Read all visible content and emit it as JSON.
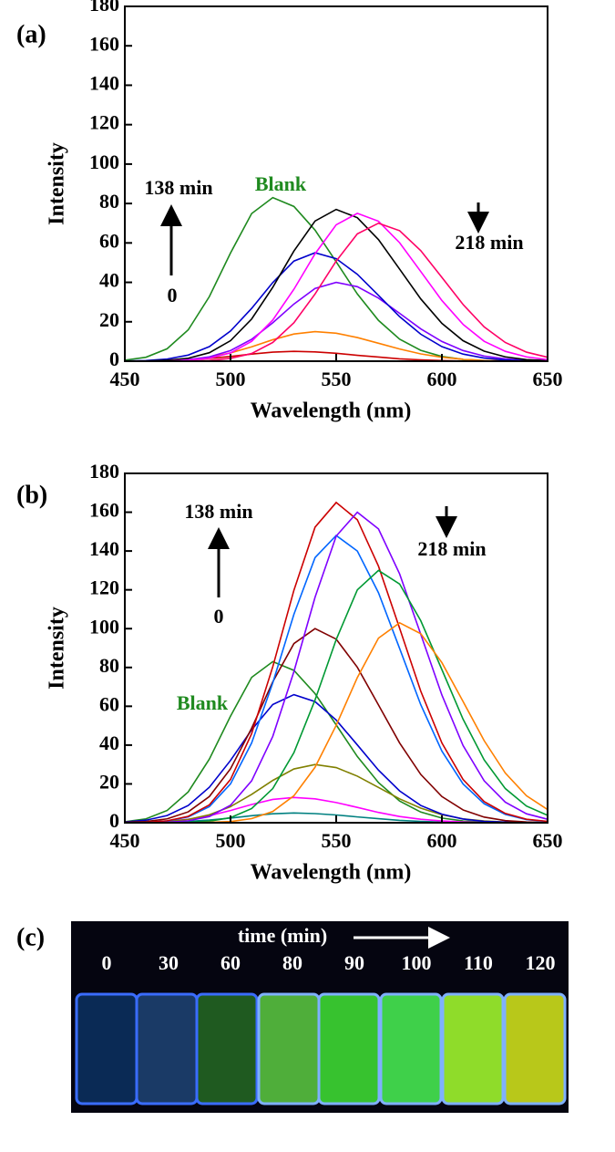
{
  "chart_data": [
    {
      "type": "line",
      "panel_label": "(a)",
      "xlabel": "Wavelength (nm)",
      "ylabel": "Intensity",
      "x": [
        450,
        460,
        470,
        480,
        490,
        500,
        510,
        520,
        530,
        540,
        550,
        560,
        570,
        580,
        590,
        600,
        610,
        620,
        630,
        640,
        650
      ],
      "xlim": [
        450,
        650
      ],
      "xticks": [
        450,
        500,
        550,
        600,
        650
      ],
      "ylim": [
        0,
        180
      ],
      "yticks": [
        0,
        20,
        40,
        60,
        80,
        100,
        120,
        140,
        160,
        180
      ],
      "annotations": [
        "138 min",
        "0",
        "218 min"
      ],
      "series": [
        {
          "name": "Blank",
          "color": "#1f8a1f",
          "values": [
            0.5,
            2.0,
            6.3,
            15.9,
            32.8,
            54.9,
            74.9,
            83,
            78.5,
            66.5,
            50.4,
            34.1,
            20.7,
            11.2,
            5.5,
            2.4,
            0.9,
            0.3,
            0.1,
            0,
            0
          ]
        },
        {
          "color": "#cc0000",
          "values": [
            0,
            0.1,
            0.3,
            0.7,
            1.4,
            2.4,
            3.6,
            4.6,
            5,
            4.7,
            4,
            3,
            2.1,
            1.2,
            0.7,
            0.3,
            0.1,
            0.1,
            0,
            0,
            0
          ]
        },
        {
          "color": "#ff8000",
          "values": [
            0,
            0.1,
            0.3,
            0.8,
            2,
            4.2,
            7.3,
            10.9,
            13.8,
            15,
            14.2,
            12,
            9.1,
            6.2,
            3.7,
            2,
            1,
            0.4,
            0.2,
            0.1,
            0
          ]
        },
        {
          "color": "#7f00ff",
          "values": [
            0,
            0.1,
            0.2,
            0.8,
            2.2,
            5.4,
            11.1,
            19.5,
            29,
            36.9,
            40,
            37.8,
            32,
            24.3,
            16.4,
            10,
            5.4,
            2.6,
            1.2,
            0.4,
            0.2
          ]
        },
        {
          "color": "#0000cc",
          "values": [
            0.1,
            0.3,
            1.1,
            3.1,
            7.4,
            15.3,
            26.8,
            39.9,
            50.8,
            55,
            52,
            44.1,
            33.4,
            22.6,
            13.7,
            7.4,
            3.6,
            1.6,
            0.6,
            0.2,
            0.1
          ]
        },
        {
          "color": "#000000",
          "values": [
            0,
            0.1,
            0.5,
            1.5,
            4.3,
            10.4,
            21.4,
            37.5,
            55.9,
            71.1,
            77,
            72.8,
            61.7,
            46.7,
            31.6,
            19.2,
            10.4,
            5.1,
            2.2,
            0.8,
            0.3
          ]
        },
        {
          "color": "#ff00ff",
          "values": [
            0,
            0,
            0.1,
            0.5,
            1.5,
            4.2,
            10.1,
            20.9,
            36.5,
            54.5,
            69.2,
            75,
            71,
            60.1,
            45.5,
            30.8,
            18.7,
            10.1,
            5,
            2.2,
            0.8
          ]
        },
        {
          "color": "#ff0066",
          "values": [
            0,
            0,
            0,
            0.1,
            0.4,
            1.4,
            3.9,
            9.5,
            19.5,
            34.1,
            50.8,
            64.6,
            70,
            66.2,
            56.1,
            42.5,
            28.8,
            17.4,
            9.5,
            4.6,
            2
          ]
        }
      ]
    },
    {
      "type": "line",
      "panel_label": "(b)",
      "xlabel": "Wavelength (nm)",
      "ylabel": "Intensity",
      "x": [
        450,
        460,
        470,
        480,
        490,
        500,
        510,
        520,
        530,
        540,
        550,
        560,
        570,
        580,
        590,
        600,
        610,
        620,
        630,
        640,
        650
      ],
      "xlim": [
        450,
        650
      ],
      "xticks": [
        450,
        500,
        550,
        600,
        650
      ],
      "ylim": [
        0,
        180
      ],
      "yticks": [
        0,
        20,
        40,
        60,
        80,
        100,
        120,
        140,
        160,
        180
      ],
      "annotations": [
        "138 min",
        "0",
        "218 min"
      ],
      "series": [
        {
          "name": "Blank",
          "color": "#1f8a1f",
          "values": [
            0.5,
            2.0,
            6.3,
            15.9,
            32.8,
            54.9,
            74.9,
            83,
            78.5,
            66.5,
            50.4,
            34.1,
            20.7,
            11.2,
            5.5,
            2.4,
            0.9,
            0.3,
            0.1,
            0,
            0
          ]
        },
        {
          "color": "#008080",
          "values": [
            0,
            0.1,
            0.3,
            0.7,
            1.4,
            2.4,
            3.6,
            4.6,
            5,
            4.7,
            4,
            3,
            2.1,
            1.2,
            0.7,
            0.3,
            0.1,
            0.1,
            0,
            0,
            0
          ]
        },
        {
          "color": "#ff00ff",
          "values": [
            0.1,
            0.3,
            0.7,
            1.8,
            3.6,
            6.3,
            9.4,
            12,
            13,
            12.3,
            10.4,
            7.9,
            5.3,
            3.2,
            1.8,
            0.9,
            0.4,
            0.1,
            0.1,
            0,
            0
          ]
        },
        {
          "color": "#808000",
          "values": [
            0,
            0.2,
            0.6,
            1.7,
            4.1,
            8.3,
            14.6,
            21.8,
            27.7,
            30,
            28.4,
            24,
            18.2,
            12.3,
            7.5,
            4.1,
            2,
            0.9,
            0.3,
            0.1,
            0
          ]
        },
        {
          "color": "#0000cc",
          "values": [
            0.4,
            1.3,
            3.7,
            8.9,
            18.3,
            32.1,
            47.9,
            60.9,
            66,
            62.4,
            52.9,
            40.1,
            27.1,
            16.4,
            8.9,
            4.4,
            1.9,
            0.7,
            0.3,
            0.1,
            0
          ]
        },
        {
          "color": "#800000",
          "values": [
            0.2,
            0.6,
            2,
            5.6,
            13.5,
            27.8,
            48.7,
            72.6,
            92.3,
            100,
            94.6,
            80.1,
            60.7,
            41.1,
            24.9,
            13.5,
            6.6,
            2.9,
            1.1,
            0.4,
            0.1
          ]
        },
        {
          "color": "#0066ff",
          "values": [
            0,
            0.2,
            0.9,
            3,
            8.3,
            20,
            41.1,
            72.1,
            107.4,
            136.6,
            148,
            140,
            118.5,
            89.8,
            60.8,
            36.9,
            20,
            9.8,
            4.3,
            1.6,
            0.6
          ]
        },
        {
          "color": "#cc0000",
          "values": [
            0,
            0.2,
            1,
            3.3,
            9.2,
            22.3,
            45.9,
            80.4,
            119.8,
            152.3,
            165,
            156.1,
            132.2,
            100.2,
            67.8,
            41.1,
            22.3,
            10.9,
            4.8,
            1.8,
            0.7
          ]
        },
        {
          "color": "#7f00ff",
          "values": [
            0,
            0,
            0.2,
            1,
            3.2,
            9,
            21.6,
            44.5,
            77.9,
            116.2,
            147.7,
            160,
            151.4,
            128.2,
            97.1,
            65.8,
            39.8,
            21.6,
            10.6,
            4.6,
            1.8
          ]
        },
        {
          "color": "#009933",
          "values": [
            0,
            0,
            0,
            0.2,
            0.8,
            2.6,
            7.3,
            17.6,
            36.1,
            63.3,
            94.4,
            120,
            130,
            123,
            104.1,
            78.9,
            53.4,
            32.4,
            17.6,
            8.6,
            3.8
          ]
        },
        {
          "color": "#ff8000",
          "values": [
            0,
            0,
            0,
            0,
            0.2,
            0.6,
            2.1,
            5.8,
            13.9,
            28.6,
            50.2,
            74.8,
            95.1,
            103,
            97.4,
            82.5,
            62.5,
            42.3,
            25.6,
            13.9,
            6.8
          ]
        }
      ]
    }
  ],
  "photo": {
    "panel_label": "(c)",
    "caption": "time (min)",
    "times": [
      "0",
      "30",
      "60",
      "80",
      "90",
      "100",
      "110",
      "120"
    ]
  }
}
